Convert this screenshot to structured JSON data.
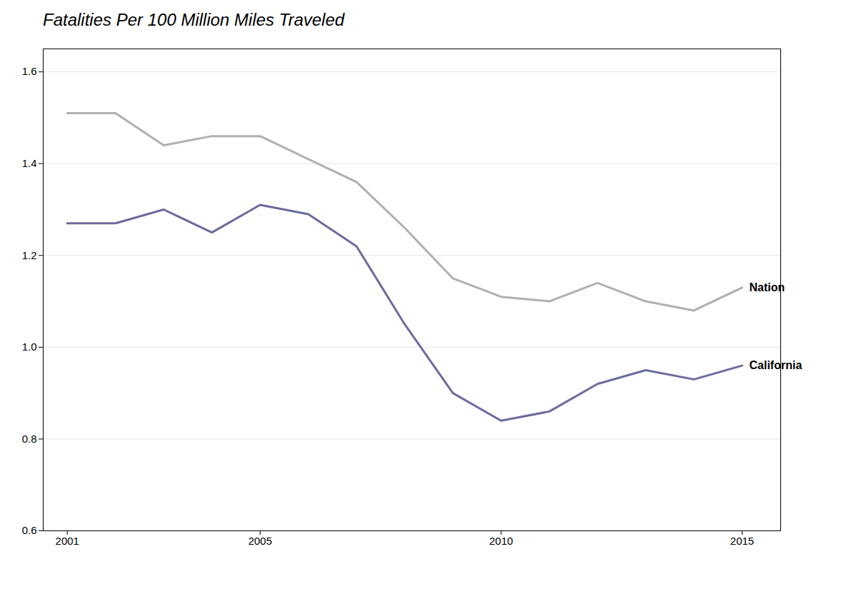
{
  "chart_data": {
    "type": "line",
    "title": "Fatalities Per 100 Million Miles Traveled",
    "x": [
      2001,
      2002,
      2003,
      2004,
      2005,
      2006,
      2007,
      2008,
      2009,
      2010,
      2011,
      2012,
      2013,
      2014,
      2015
    ],
    "series": [
      {
        "name": "Nation",
        "color": "#b0b0b0",
        "values": [
          1.51,
          1.51,
          1.44,
          1.46,
          1.46,
          1.41,
          1.36,
          1.26,
          1.15,
          1.11,
          1.1,
          1.14,
          1.1,
          1.08,
          1.13
        ]
      },
      {
        "name": "California",
        "color": "#6b6b9e",
        "values": [
          1.27,
          1.27,
          1.3,
          1.25,
          1.31,
          1.29,
          1.22,
          1.05,
          0.9,
          0.84,
          0.86,
          0.92,
          0.95,
          0.93,
          0.96
        ]
      }
    ],
    "xlim": [
      2000.5,
      2015.8
    ],
    "xticks": [
      2001,
      2005,
      2010,
      2015
    ],
    "ylim": [
      0.6,
      1.65
    ],
    "yticks": [
      0.6,
      0.8,
      {
        "value": 1.0,
        "label": "1.0"
      },
      1.2,
      1.4,
      1.6
    ],
    "grid": true
  }
}
